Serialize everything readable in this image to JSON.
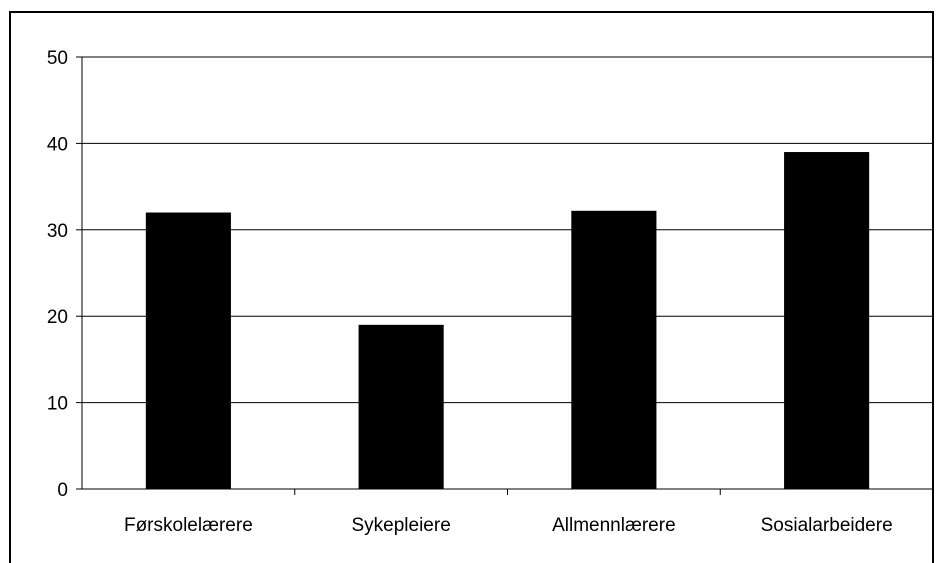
{
  "chart_data": {
    "type": "bar",
    "title": "",
    "xlabel": "",
    "ylabel": "",
    "categories": [
      "Førskolelærere",
      "Sykepleiere",
      "Allmennlærere",
      "Sosialarbeidere"
    ],
    "values": [
      32,
      19,
      32.2,
      39
    ],
    "ylim": [
      0,
      50
    ],
    "yticks": [
      0,
      10,
      20,
      30,
      40,
      50
    ],
    "grid": true,
    "legend": "none",
    "colors": {
      "bar": "#000000",
      "grid": "#000000",
      "background": "#ffffff"
    }
  }
}
